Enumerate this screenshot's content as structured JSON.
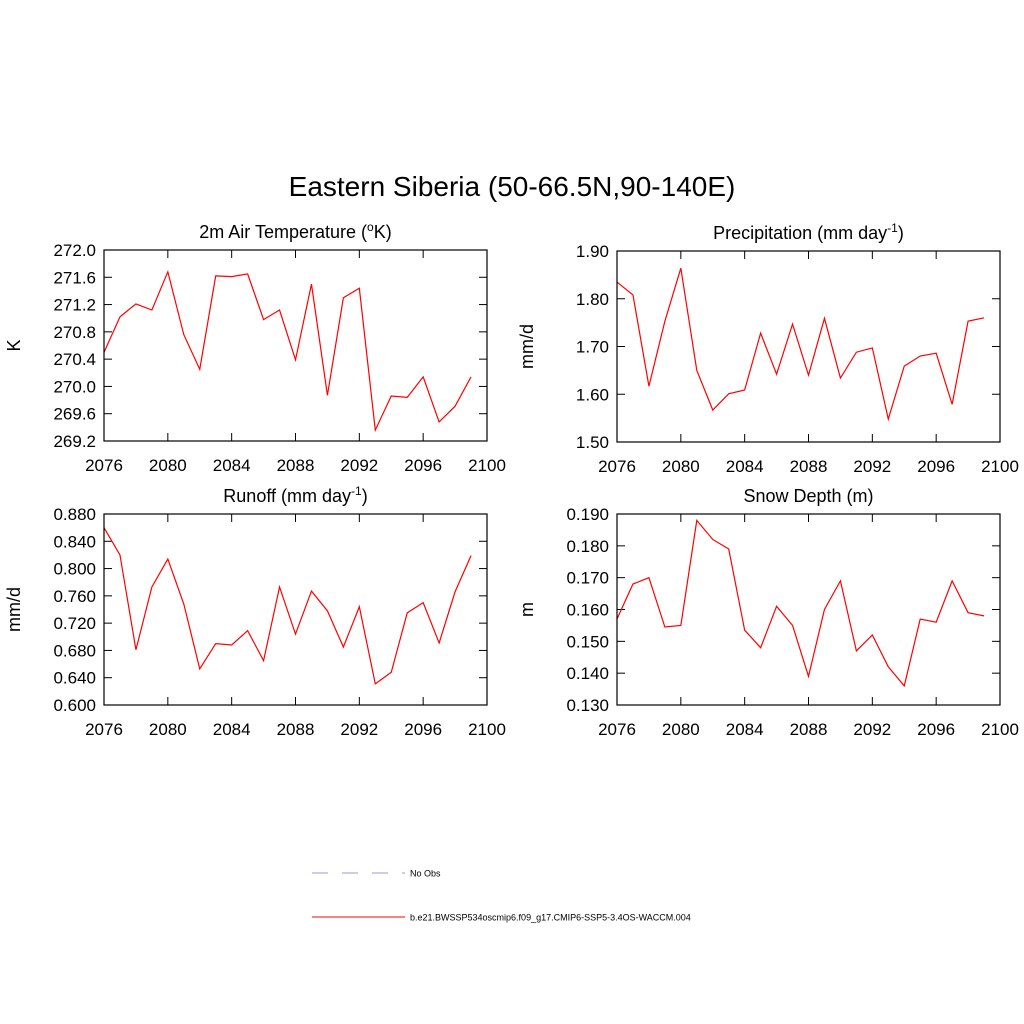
{
  "title": "Eastern Siberia (50-66.5N,90-140E)",
  "chart_data": [
    {
      "type": "line",
      "title": [
        {
          "text": "2m Air Temperature ("
        },
        {
          "text": "o",
          "sup": true
        },
        {
          "text": "K)"
        }
      ],
      "ylabel": "K",
      "x": [
        2076,
        2077,
        2078,
        2079,
        2080,
        2081,
        2082,
        2083,
        2084,
        2085,
        2086,
        2087,
        2088,
        2089,
        2090,
        2091,
        2092,
        2093,
        2094,
        2095,
        2096,
        2097,
        2098,
        2099
      ],
      "series": [
        {
          "color": "#ff0000",
          "values": [
            270.5,
            271.02,
            271.21,
            271.12,
            271.68,
            270.76,
            270.25,
            271.62,
            271.61,
            271.65,
            270.98,
            271.12,
            270.39,
            271.5,
            269.87,
            271.3,
            271.44,
            269.36,
            269.86,
            269.84,
            270.14,
            269.48,
            269.71,
            270.14
          ]
        }
      ],
      "xlim": [
        2076,
        2100
      ],
      "xticks": [
        2076,
        2080,
        2084,
        2088,
        2092,
        2096,
        2100
      ],
      "ylim": [
        269.2,
        272.0
      ],
      "yticks": [
        {
          "value": 269.2,
          "label": "269.2"
        },
        269.6,
        {
          "value": 270,
          "label": "270.0"
        },
        270.4,
        270.8,
        271.2,
        271.6,
        {
          "value": 272,
          "label": "272.0"
        }
      ]
    },
    {
      "type": "line",
      "title": [
        {
          "text": "Precipitation (mm day"
        },
        {
          "text": "-1",
          "sup": true
        },
        {
          "text": ")"
        }
      ],
      "ylabel": "mm/d",
      "x": [
        2076,
        2077,
        2078,
        2079,
        2080,
        2081,
        2082,
        2083,
        2084,
        2085,
        2086,
        2087,
        2088,
        2089,
        2090,
        2091,
        2092,
        2093,
        2094,
        2095,
        2096,
        2097,
        2098,
        2099
      ],
      "series": [
        {
          "color": "#ff0000",
          "values": [
            1.835,
            1.808,
            1.617,
            1.753,
            1.864,
            1.65,
            1.567,
            1.601,
            1.609,
            1.728,
            1.642,
            1.747,
            1.64,
            1.759,
            1.634,
            1.688,
            1.697,
            1.548,
            1.659,
            1.68,
            1.686,
            1.579,
            1.753,
            1.76
          ]
        }
      ],
      "xlim": [
        2076,
        2100
      ],
      "xticks": [
        2076,
        2080,
        2084,
        2088,
        2092,
        2096,
        2100
      ],
      "ylim": [
        1.5,
        1.9
      ],
      "yticks": [
        {
          "value": 1.5,
          "label": "1.50"
        },
        {
          "value": 1.6,
          "label": "1.60"
        },
        {
          "value": 1.7,
          "label": "1.70"
        },
        {
          "value": 1.8,
          "label": "1.80"
        },
        {
          "value": 1.9,
          "label": "1.90"
        }
      ]
    },
    {
      "type": "line",
      "title": [
        {
          "text": "Runoff (mm day"
        },
        {
          "text": "-1",
          "sup": true
        },
        {
          "text": ")"
        }
      ],
      "ylabel": "mm/d",
      "x": [
        2076,
        2077,
        2078,
        2079,
        2080,
        2081,
        2082,
        2083,
        2084,
        2085,
        2086,
        2087,
        2088,
        2089,
        2090,
        2091,
        2092,
        2093,
        2094,
        2095,
        2096,
        2097,
        2098,
        2099
      ],
      "series": [
        {
          "color": "#ff0000",
          "values": [
            0.86,
            0.82,
            0.681,
            0.773,
            0.814,
            0.748,
            0.653,
            0.69,
            0.688,
            0.709,
            0.665,
            0.773,
            0.704,
            0.767,
            0.738,
            0.685,
            0.744,
            0.631,
            0.648,
            0.735,
            0.75,
            0.691,
            0.766,
            0.819
          ]
        }
      ],
      "xlim": [
        2076,
        2100
      ],
      "xticks": [
        2076,
        2080,
        2084,
        2088,
        2092,
        2096,
        2100
      ],
      "ylim": [
        0.6,
        0.88
      ],
      "yticks": [
        {
          "value": 0.6,
          "label": "0.600"
        },
        {
          "value": 0.64,
          "label": "0.640"
        },
        {
          "value": 0.68,
          "label": "0.680"
        },
        {
          "value": 0.72,
          "label": "0.720"
        },
        {
          "value": 0.76,
          "label": "0.760"
        },
        {
          "value": 0.8,
          "label": "0.800"
        },
        {
          "value": 0.84,
          "label": "0.840"
        },
        {
          "value": 0.88,
          "label": "0.880"
        }
      ]
    },
    {
      "type": "line",
      "title": [
        {
          "text": "Snow Depth (m)"
        }
      ],
      "ylabel": "m",
      "x": [
        2076,
        2077,
        2078,
        2079,
        2080,
        2081,
        2082,
        2083,
        2084,
        2085,
        2086,
        2087,
        2088,
        2089,
        2090,
        2091,
        2092,
        2093,
        2094,
        2095,
        2096,
        2097,
        2098,
        2099
      ],
      "series": [
        {
          "color": "#ff0000",
          "values": [
            0.157,
            0.168,
            0.17,
            0.1545,
            0.155,
            0.188,
            0.182,
            0.179,
            0.1535,
            0.148,
            0.161,
            0.155,
            0.139,
            0.16,
            0.169,
            0.147,
            0.152,
            0.142,
            0.136,
            0.157,
            0.156,
            0.169,
            0.159,
            0.158
          ]
        }
      ],
      "xlim": [
        2076,
        2100
      ],
      "xticks": [
        2076,
        2080,
        2084,
        2088,
        2092,
        2096,
        2100
      ],
      "ylim": [
        0.13,
        0.19
      ],
      "yticks": [
        {
          "value": 0.13,
          "label": "0.130"
        },
        {
          "value": 0.14,
          "label": "0.140"
        },
        {
          "value": 0.15,
          "label": "0.150"
        },
        {
          "value": 0.16,
          "label": "0.160"
        },
        {
          "value": 0.17,
          "label": "0.170"
        },
        {
          "value": 0.18,
          "label": "0.180"
        },
        {
          "value": 0.19,
          "label": "0.190"
        }
      ]
    }
  ],
  "legend": [
    {
      "name": "No Obs",
      "color": "#9999dd",
      "dash": true
    },
    {
      "name": "b.e21.BWSSP534oscmip6.f09_g17.CMIP6-SSP5-3.4OS-WACCM.004",
      "color": "#ff0000",
      "dash": false
    }
  ]
}
